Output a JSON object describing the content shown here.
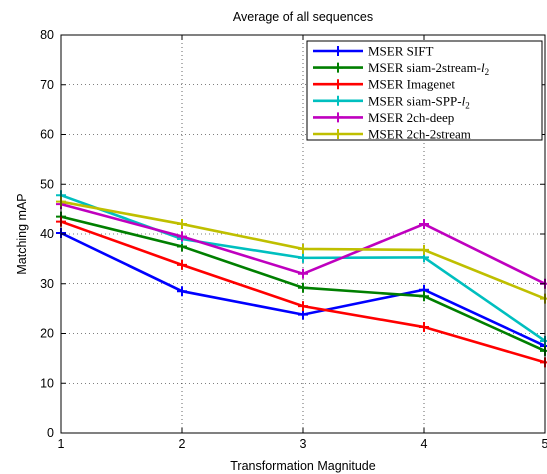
{
  "chart_data": {
    "type": "line",
    "title": "Average of all sequences",
    "xlabel": "Transformation Magnitude",
    "ylabel": "Matching mAP",
    "x": [
      1,
      2,
      3,
      4,
      5
    ],
    "xlim": [
      1,
      5
    ],
    "ylim": [
      0,
      80
    ],
    "xticks": [
      "1",
      "2",
      "3",
      "4",
      "5"
    ],
    "yticks": [
      "0",
      "10",
      "20",
      "30",
      "40",
      "50",
      "60",
      "70",
      "80"
    ],
    "grid": true,
    "legend_position": "top-right",
    "series": [
      {
        "name": "MSER SIFT",
        "label_main": "MSER SIFT",
        "label_sub": "",
        "color": "#0000ff",
        "values": [
          40.2,
          28.5,
          23.8,
          28.8,
          17.5
        ]
      },
      {
        "name": "MSER siam-2stream-l2",
        "label_main": "MSER siam-2stream-",
        "label_sub": "2",
        "color": "#007f00",
        "values": [
          43.5,
          37.5,
          29.2,
          27.5,
          16.5
        ]
      },
      {
        "name": "MSER Imagenet",
        "label_main": "MSER Imagenet",
        "label_sub": "",
        "color": "#ff0000",
        "values": [
          42.5,
          33.8,
          25.5,
          21.3,
          14.2
        ]
      },
      {
        "name": "MSER siam-SPP-l2",
        "label_main": "MSER siam-SPP-",
        "label_sub": "2",
        "color": "#00bfbf",
        "values": [
          47.8,
          39.0,
          35.2,
          35.3,
          18.5
        ]
      },
      {
        "name": "MSER 2ch-deep",
        "label_main": "MSER 2ch-deep",
        "label_sub": "",
        "color": "#bf00bf",
        "values": [
          46.0,
          39.5,
          32.0,
          42.0,
          30.0
        ]
      },
      {
        "name": "MSER 2ch-2stream",
        "label_main": "MSER 2ch-2stream",
        "label_sub": "",
        "color": "#bfbf00",
        "values": [
          46.5,
          42.0,
          37.0,
          36.8,
          27.0
        ]
      }
    ]
  }
}
